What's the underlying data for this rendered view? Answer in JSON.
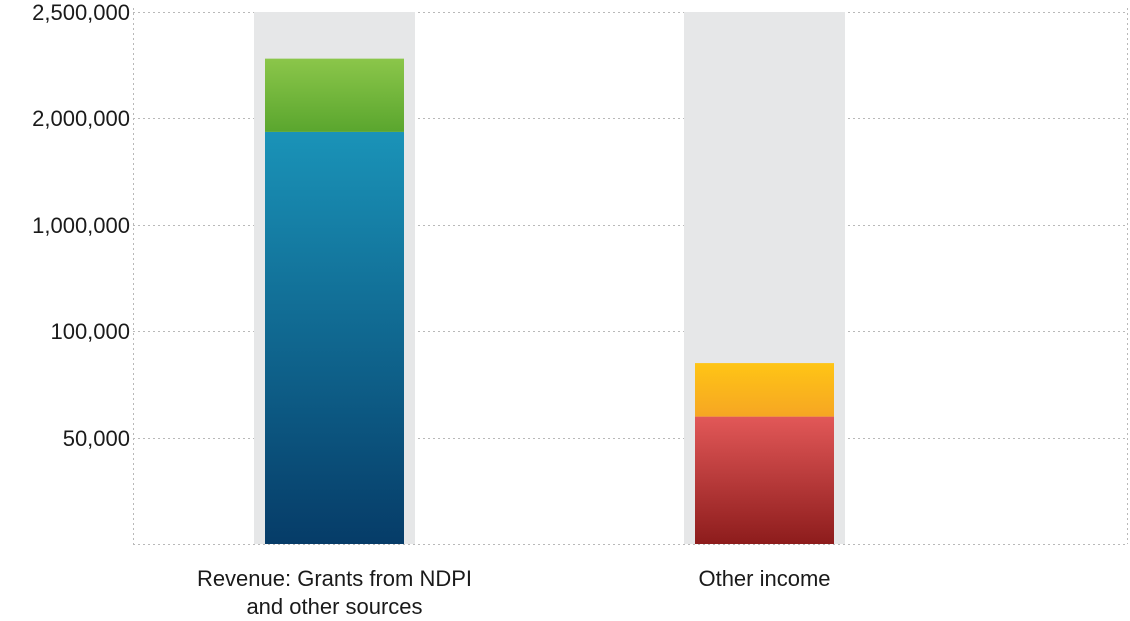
{
  "chart_data": {
    "type": "bar",
    "stacked": true,
    "y_scale": "custom-piecewise",
    "ylim": [
      0,
      2500000
    ],
    "y_ticks": [
      {
        "value": 50000,
        "label": "50,000"
      },
      {
        "value": 100000,
        "label": "100,000"
      },
      {
        "value": 1000000,
        "label": "1,000,000"
      },
      {
        "value": 2000000,
        "label": "2,000,000"
      },
      {
        "value": 2500000,
        "label": "2,500,000"
      }
    ],
    "grid": true,
    "categories": [
      {
        "label_lines": [
          "Revenue: Grants from NDPI",
          "and other sources"
        ]
      },
      {
        "label_lines": [
          "Other income"
        ]
      }
    ],
    "bars": [
      {
        "category": 0,
        "total": 2280000,
        "segments": [
          {
            "value": 1870000,
            "color_top": "#1a93b8",
            "color_bottom": "#063c68"
          },
          {
            "value": 410000,
            "color_top": "#8bc64a",
            "color_bottom": "#5aa62e"
          }
        ]
      },
      {
        "category": 1,
        "total": 85000,
        "segments": [
          {
            "value": 60000,
            "color_top": "#e25858",
            "color_bottom": "#8d1c1c"
          },
          {
            "value": 25000,
            "color_top": "#ffc515",
            "color_bottom": "#f6a623"
          }
        ]
      }
    ],
    "background_bar_color": "#e6e7e8"
  }
}
